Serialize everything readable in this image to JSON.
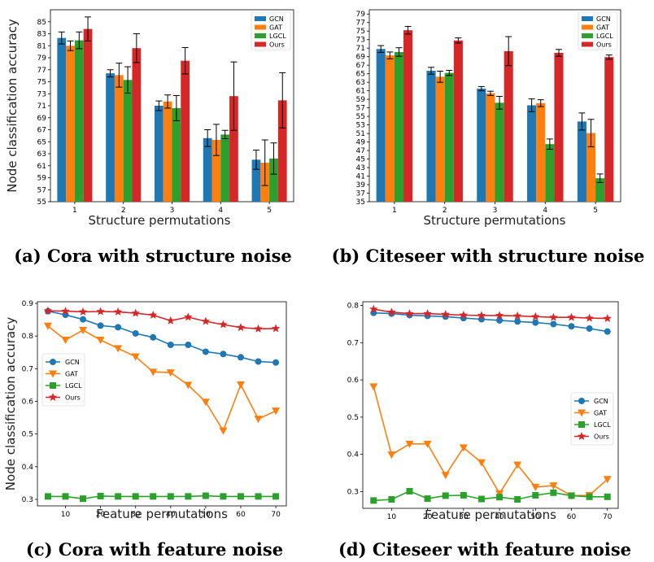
{
  "chart_data": [
    {
      "type": "bar",
      "categories": [
        "1",
        "2",
        "3",
        "4",
        "5"
      ],
      "xlabel": "Structure permutations",
      "ylabel": "Node classification accuracy",
      "ylim": [
        55,
        87
      ],
      "yticks": [
        "55",
        "57",
        "59",
        "61",
        "63",
        "65",
        "67",
        "69",
        "71",
        "73",
        "75",
        "77",
        "79",
        "81",
        "83",
        "85"
      ],
      "caption": "(a) Cora with structure noise",
      "legend_position": "top-right",
      "series": [
        {
          "name": "GCN",
          "values": [
            82.3,
            76.4,
            71.0,
            65.6,
            62.0
          ],
          "errors": [
            1.0,
            0.6,
            0.8,
            1.4,
            1.6
          ]
        },
        {
          "name": "GAT",
          "values": [
            81.0,
            76.1,
            71.7,
            65.3,
            61.5
          ],
          "errors": [
            0.8,
            2.0,
            1.1,
            2.6,
            3.8
          ]
        },
        {
          "name": "LGCL",
          "values": [
            81.9,
            75.3,
            70.6,
            66.2,
            62.2
          ],
          "errors": [
            1.4,
            2.2,
            2.1,
            0.7,
            2.6
          ]
        },
        {
          "name": "Ours",
          "values": [
            83.8,
            80.6,
            78.5,
            72.6,
            71.9
          ],
          "errors": [
            2.0,
            2.4,
            2.2,
            5.7,
            4.6
          ]
        }
      ]
    },
    {
      "type": "bar",
      "categories": [
        "1",
        "2",
        "3",
        "4",
        "5"
      ],
      "xlabel": "Structure permutations",
      "ylabel": "",
      "ylim": [
        35,
        80
      ],
      "yticks": [
        "35",
        "37",
        "39",
        "41",
        "43",
        "45",
        "47",
        "49",
        "51",
        "53",
        "55",
        "57",
        "59",
        "61",
        "63",
        "65",
        "67",
        "69",
        "71",
        "73",
        "75",
        "77",
        "79"
      ],
      "caption": "(b) Citeseer with structure noise",
      "legend_position": "top-right",
      "series": [
        {
          "name": "GCN",
          "values": [
            70.8,
            65.7,
            61.5,
            57.6,
            53.8
          ],
          "errors": [
            0.8,
            0.8,
            0.5,
            1.5,
            2.0
          ]
        },
        {
          "name": "GAT",
          "values": [
            69.3,
            64.3,
            60.4,
            58.1,
            51.1
          ],
          "errors": [
            0.8,
            1.3,
            0.5,
            0.8,
            3.2
          ]
        },
        {
          "name": "LGCL",
          "values": [
            70.1,
            65.2,
            58.2,
            48.5,
            40.5
          ],
          "errors": [
            1.0,
            0.6,
            1.5,
            1.2,
            1.0
          ]
        },
        {
          "name": "Ours",
          "values": [
            75.2,
            72.8,
            70.3,
            69.9,
            68.9
          ],
          "errors": [
            0.9,
            0.6,
            3.4,
            0.8,
            0.5
          ]
        }
      ]
    },
    {
      "type": "line",
      "x": [
        5,
        10,
        15,
        20,
        25,
        30,
        35,
        40,
        45,
        50,
        55,
        60,
        65,
        70
      ],
      "xticks": [
        "10",
        "20",
        "30",
        "40",
        "50",
        "60",
        "70"
      ],
      "xlabel": "Feature permutations",
      "ylabel": "Node classification accuracy",
      "xlim": [
        2,
        73
      ],
      "ylim": [
        0.28,
        0.905
      ],
      "yticks": [
        "0.3",
        "0.4",
        "0.5",
        "0.6",
        "0.7",
        "0.8",
        "0.9"
      ],
      "caption": "(c) Cora with feature noise",
      "legend_position": "center-left",
      "series": [
        {
          "name": "GCN",
          "marker": "circle",
          "values": [
            0.876,
            0.865,
            0.851,
            0.832,
            0.827,
            0.808,
            0.796,
            0.773,
            0.773,
            0.752,
            0.745,
            0.735,
            0.722,
            0.719
          ]
        },
        {
          "name": "GAT",
          "marker": "triangle-down",
          "values": [
            0.831,
            0.788,
            0.818,
            0.788,
            0.762,
            0.737,
            0.69,
            0.688,
            0.65,
            0.598,
            0.51,
            0.651,
            0.546,
            0.571
          ]
        },
        {
          "name": "LGCL",
          "marker": "square",
          "values": [
            0.309,
            0.309,
            0.302,
            0.31,
            0.309,
            0.309,
            0.309,
            0.309,
            0.309,
            0.311,
            0.309,
            0.309,
            0.309,
            0.309
          ]
        },
        {
          "name": "Ours",
          "marker": "star",
          "values": [
            0.877,
            0.876,
            0.874,
            0.875,
            0.874,
            0.87,
            0.864,
            0.847,
            0.858,
            0.845,
            0.835,
            0.826,
            0.822,
            0.823
          ]
        }
      ]
    },
    {
      "type": "line",
      "x": [
        5,
        10,
        15,
        20,
        25,
        30,
        35,
        40,
        45,
        50,
        55,
        60,
        65,
        70
      ],
      "xticks": [
        "10",
        "20",
        "30",
        "40",
        "50",
        "60",
        "70"
      ],
      "xlabel": "Feature permutations",
      "ylabel": "",
      "xlim": [
        2,
        73
      ],
      "ylim": [
        0.255,
        0.81
      ],
      "yticks": [
        "0.3",
        "0.4",
        "0.5",
        "0.6",
        "0.7",
        "0.8"
      ],
      "caption": "(d) Citeseer with feature noise",
      "legend_position": "center-right",
      "series": [
        {
          "name": "GCN",
          "marker": "circle",
          "values": [
            0.78,
            0.778,
            0.774,
            0.772,
            0.77,
            0.766,
            0.763,
            0.76,
            0.757,
            0.754,
            0.75,
            0.744,
            0.738,
            0.73
          ]
        },
        {
          "name": "GAT",
          "marker": "triangle-down",
          "values": [
            0.582,
            0.399,
            0.428,
            0.428,
            0.344,
            0.418,
            0.378,
            0.295,
            0.372,
            0.312,
            0.316,
            0.289,
            0.29,
            0.333
          ]
        },
        {
          "name": "LGCL",
          "marker": "square",
          "values": [
            0.276,
            0.279,
            0.301,
            0.281,
            0.289,
            0.29,
            0.28,
            0.285,
            0.279,
            0.29,
            0.297,
            0.289,
            0.286,
            0.286
          ]
        },
        {
          "name": "Ours",
          "marker": "star",
          "values": [
            0.79,
            0.782,
            0.778,
            0.778,
            0.776,
            0.774,
            0.773,
            0.773,
            0.772,
            0.77,
            0.768,
            0.768,
            0.766,
            0.765
          ]
        }
      ]
    }
  ],
  "colors": {
    "GCN": "#1f77b4",
    "GAT": "#ff7f0e",
    "LGCL": "#2ca02c",
    "Ours": "#d62728"
  }
}
